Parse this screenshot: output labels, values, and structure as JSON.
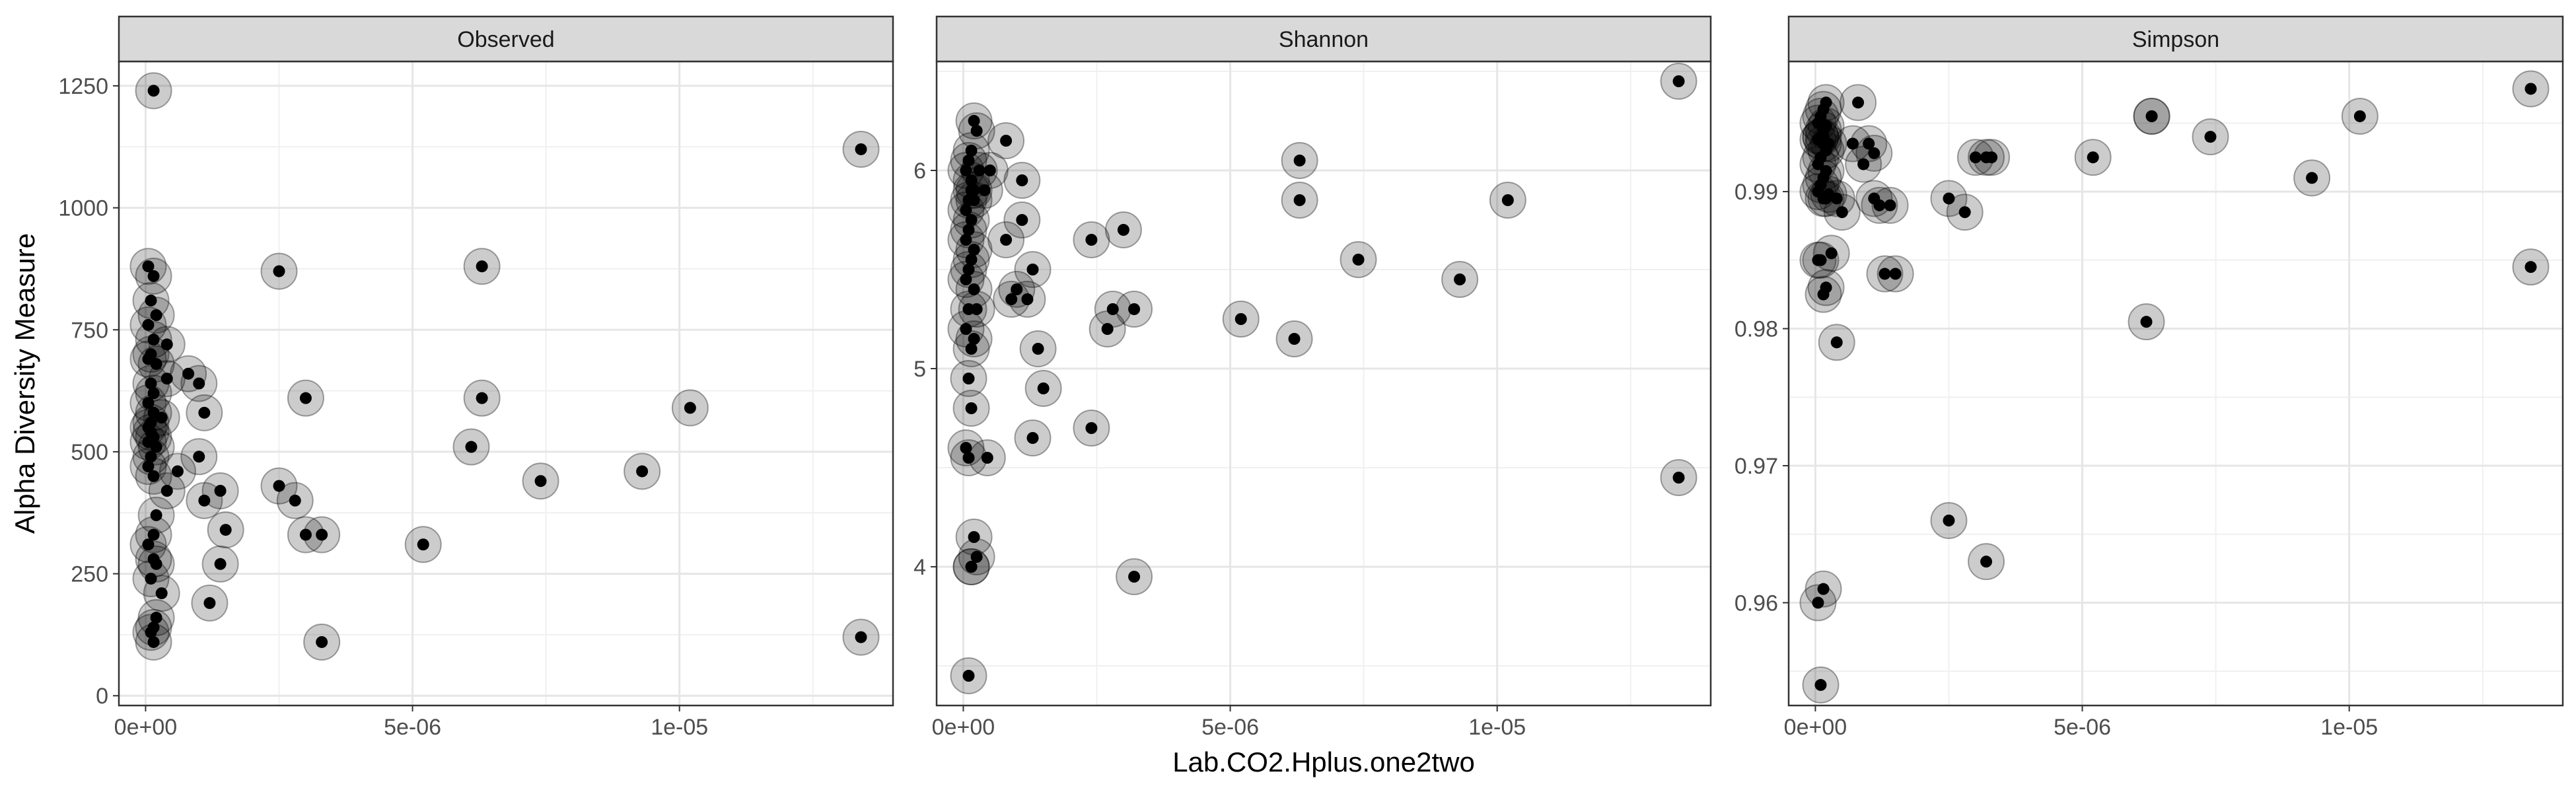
{
  "figure": {
    "ylabel": "Alpha Diversity Measure",
    "xlabel": "Lab.CO2.Hplus.one2two",
    "colors": {
      "strip": "#d9d9d9",
      "grid": "#e6e6e6",
      "point_outer": "#000000",
      "point_inner": "#000000",
      "border": "#333333"
    }
  },
  "chart_data": [
    {
      "type": "scatter",
      "panel": "Observed",
      "xlim": [
        -5e-07,
        1.4e-05
      ],
      "ylim": [
        -20,
        1300
      ],
      "x_ticks": [
        0,
        5e-06,
        1e-05
      ],
      "x_tick_labels": [
        "0e+00",
        "5e-06",
        "1e-05"
      ],
      "y_ticks": [
        0,
        250,
        500,
        750,
        1000,
        1250
      ],
      "y_tick_labels": [
        "0",
        "250",
        "500",
        "750",
        "1000",
        "1250"
      ],
      "x": [
        1.5e-07,
        5e-08,
        1.5e-07,
        1e-07,
        2e-07,
        5e-08,
        1.5e-07,
        4e-07,
        1e-07,
        5e-08,
        2e-07,
        8e-07,
        4e-07,
        1e-07,
        1.5e-07,
        5e-08,
        1.5e-07,
        3e-07,
        1e-07,
        5e-08,
        1e-07,
        1.5e-07,
        5e-08,
        2e-07,
        1e-07,
        5e-08,
        1.5e-07,
        2e-07,
        1.5e-07,
        5e-08,
        1.5e-07,
        2e-07,
        1e-07,
        3e-07,
        2e-07,
        1.5e-07,
        1e-07,
        1.5e-07,
        1e-06,
        1e-06,
        4e-07,
        6e-07,
        1.1e-06,
        1.1e-06,
        1.4e-06,
        1.5e-06,
        1.4e-06,
        1.2e-06,
        2.5e-06,
        2.5e-06,
        2.8e-06,
        3e-06,
        3e-06,
        3.3e-06,
        3.3e-06,
        5.2e-06,
        6.1e-06,
        6.3e-06,
        6.3e-06,
        7.4e-06,
        9.3e-06,
        1.02e-05,
        1.34e-05,
        1.34e-05
      ],
      "y": [
        1240,
        880,
        860,
        810,
        780,
        760,
        730,
        720,
        700,
        690,
        680,
        660,
        650,
        640,
        620,
        600,
        580,
        570,
        560,
        550,
        540,
        530,
        520,
        510,
        490,
        470,
        450,
        370,
        330,
        310,
        280,
        270,
        240,
        210,
        160,
        140,
        130,
        110,
        640,
        490,
        420,
        460,
        580,
        400,
        420,
        340,
        270,
        190,
        430,
        870,
        400,
        610,
        330,
        330,
        110,
        310,
        510,
        610,
        880,
        440,
        460,
        590,
        1120,
        120
      ],
      "marker": "black dot with translucent halo"
    },
    {
      "type": "scatter",
      "panel": "Shannon",
      "xlim": [
        -5e-07,
        1.4e-05
      ],
      "ylim": [
        3.3,
        6.55
      ],
      "x_ticks": [
        0,
        5e-06,
        1e-05
      ],
      "x_tick_labels": [
        "0e+00",
        "5e-06",
        "1e-05"
      ],
      "y_ticks": [
        4,
        5,
        6
      ],
      "y_tick_labels": [
        "4",
        "5",
        "6"
      ],
      "x": [
        2e-07,
        2.5e-07,
        1.5e-07,
        1e-07,
        5e-08,
        1.5e-07,
        2e-07,
        1e-07,
        5e-08,
        1.5e-07,
        1e-07,
        5e-08,
        2e-07,
        1.5e-07,
        1e-07,
        5e-08,
        1.5e-07,
        2e-07,
        1e-07,
        5e-08,
        1.5e-07,
        2e-07,
        1e-07,
        1.5e-07,
        5e-08,
        1e-07,
        2e-07,
        1.5e-07,
        2.5e-07,
        1e-07,
        4e-07,
        3e-07,
        2e-07,
        2.5e-07,
        1.5e-07,
        4.5e-07,
        5e-07,
        8e-07,
        8e-07,
        9e-07,
        1.1e-06,
        1.1e-06,
        1.3e-06,
        1.2e-06,
        1.3e-06,
        1e-06,
        1.4e-06,
        1.5e-06,
        2.4e-06,
        2.4e-06,
        2.7e-06,
        2.8e-06,
        3e-06,
        3.2e-06,
        3.2e-06,
        5.2e-06,
        6.2e-06,
        6.3e-06,
        6.3e-06,
        7.4e-06,
        9.3e-06,
        1.02e-05,
        1.34e-05,
        1.34e-05
      ],
      "y": [
        6.25,
        6.2,
        6.1,
        6.05,
        6.0,
        5.95,
        5.9,
        5.85,
        5.8,
        5.75,
        5.7,
        5.65,
        5.6,
        5.55,
        5.5,
        5.45,
        5.9,
        5.85,
        5.3,
        5.2,
        5.1,
        5.15,
        4.95,
        4.8,
        4.6,
        4.55,
        4.15,
        4.0,
        4.05,
        3.45,
        5.9,
        6.0,
        5.4,
        5.3,
        4.0,
        4.55,
        6.0,
        6.15,
        5.65,
        5.35,
        5.95,
        5.75,
        5.5,
        5.35,
        4.65,
        5.4,
        5.1,
        4.9,
        4.7,
        5.65,
        5.2,
        5.3,
        5.7,
        5.3,
        3.95,
        5.25,
        5.15,
        5.85,
        6.05,
        5.55,
        5.45,
        5.85,
        6.45,
        4.45
      ],
      "marker": "black dot with translucent halo"
    },
    {
      "type": "scatter",
      "panel": "Simpson",
      "xlim": [
        -5e-07,
        1.4e-05
      ],
      "ylim": [
        0.9525,
        0.9995
      ],
      "x_ticks": [
        0,
        5e-06,
        1e-05
      ],
      "x_tick_labels": [
        "0e+00",
        "5e-06",
        "1e-05"
      ],
      "y_ticks": [
        0.96,
        0.97,
        0.98,
        0.99
      ],
      "y_tick_labels": [
        "0.96",
        "0.97",
        "0.98",
        "0.99"
      ],
      "x": [
        2e-07,
        1.5e-07,
        1e-07,
        5e-08,
        2e-07,
        1.5e-07,
        1e-07,
        5e-08,
        1.5e-07,
        2e-07,
        1e-07,
        5e-08,
        2e-07,
        1.5e-07,
        1e-07,
        5e-08,
        1.5e-07,
        2.5e-07,
        1e-07,
        3e-07,
        1.5e-07,
        5e-08,
        2e-07,
        1.5e-07,
        5e-08,
        1e-07,
        2e-07,
        1.5e-07,
        2.5e-07,
        1e-07,
        4e-07,
        8e-07,
        5e-07,
        7e-07,
        1e-06,
        9e-07,
        1.1e-06,
        1.2e-06,
        1.4e-06,
        1.5e-06,
        1.3e-06,
        1.1e-06,
        4e-07,
        2.5e-06,
        2.8e-06,
        3.2e-06,
        3e-06,
        3.3e-06,
        3.2e-06,
        2.5e-06,
        5.2e-06,
        6.3e-06,
        6.3e-06,
        7.4e-06,
        9.3e-06,
        1.02e-05,
        1.34e-05,
        1.34e-05,
        6.2e-06
      ],
      "y": [
        0.9965,
        0.996,
        0.9955,
        0.995,
        0.9948,
        0.9945,
        0.994,
        0.9938,
        0.9935,
        0.993,
        0.9925,
        0.992,
        0.9915,
        0.991,
        0.9905,
        0.99,
        0.9895,
        0.9898,
        0.985,
        0.9855,
        0.9825,
        0.985,
        0.983,
        0.961,
        0.96,
        0.954,
        0.9895,
        0.994,
        0.9935,
        0.994,
        0.9895,
        0.9965,
        0.9885,
        0.9935,
        0.9935,
        0.992,
        0.9928,
        0.989,
        0.989,
        0.984,
        0.984,
        0.9895,
        0.979,
        0.9895,
        0.9885,
        0.9925,
        0.9925,
        0.9925,
        0.963,
        0.966,
        0.9925,
        0.9955,
        0.9955,
        0.994,
        0.991,
        0.9955,
        0.9975,
        0.9845,
        0.9805
      ],
      "marker": "black dot with translucent halo"
    }
  ]
}
